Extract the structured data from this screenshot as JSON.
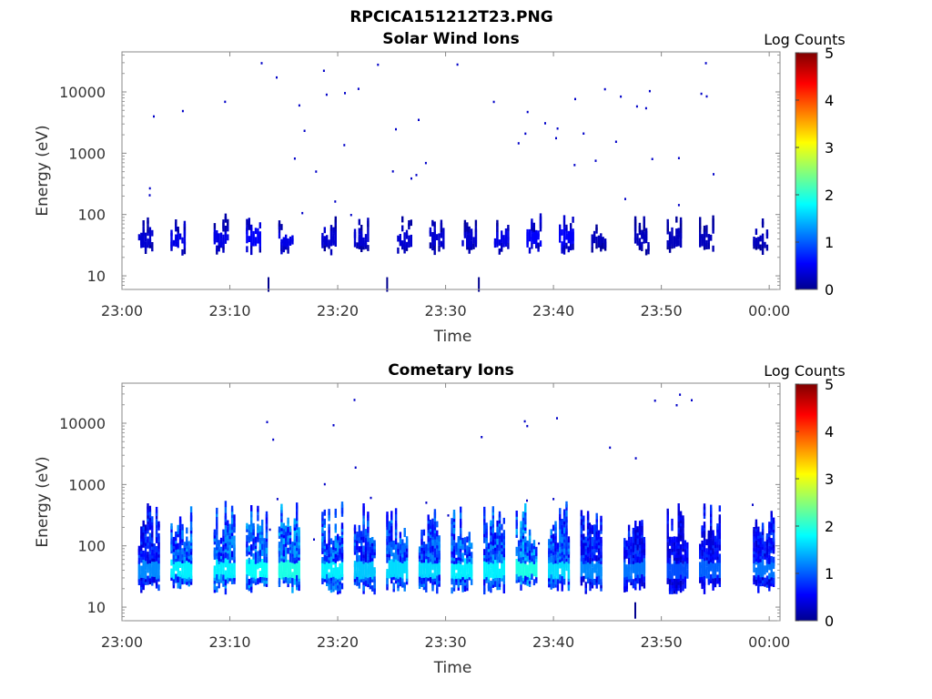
{
  "figure": {
    "title": "RPCICA151212T23.PNG"
  },
  "colorbar": {
    "label": "Log Counts",
    "min": 0,
    "max": 5,
    "ticks": [
      "0",
      "1",
      "2",
      "3",
      "4",
      "5"
    ],
    "colormap": "jet"
  },
  "chart_data": [
    {
      "type": "heatmap",
      "title": "Solar Wind Ions",
      "xlabel": "Time",
      "ylabel": "Energy (eV)",
      "yscale": "log",
      "ylim": [
        6,
        45000
      ],
      "xlim": [
        "23:00",
        "00:01"
      ],
      "xticks": [
        "23:00",
        "23:10",
        "23:20",
        "23:30",
        "23:40",
        "23:50",
        "00:00"
      ],
      "yticks": [
        "10",
        "100",
        "1000",
        "10000"
      ],
      "grid": false,
      "bursts": [
        {
          "t": "23:02",
          "counts": 0.4
        },
        {
          "t": "23:05",
          "counts": 0.5
        },
        {
          "t": "23:09",
          "counts": 0.5
        },
        {
          "t": "23:12",
          "counts": 0.6
        },
        {
          "t": "23:15",
          "counts": 0.5
        },
        {
          "t": "23:19",
          "counts": 0.4
        },
        {
          "t": "23:22",
          "counts": 0.4
        },
        {
          "t": "23:26",
          "counts": 0.4
        },
        {
          "t": "23:29",
          "counts": 0.4
        },
        {
          "t": "23:32",
          "counts": 0.4
        },
        {
          "t": "23:35",
          "counts": 0.5
        },
        {
          "t": "23:38",
          "counts": 0.6
        },
        {
          "t": "23:41",
          "counts": 0.6
        },
        {
          "t": "23:44",
          "counts": 0.3
        },
        {
          "t": "23:48",
          "counts": 0.3
        },
        {
          "t": "23:51",
          "counts": 0.3
        },
        {
          "t": "23:54",
          "counts": 0.3
        },
        {
          "t": "23:59",
          "counts": 0.3
        }
      ]
    },
    {
      "type": "heatmap",
      "title": "Cometary Ions",
      "xlabel": "Time",
      "ylabel": "Energy (eV)",
      "yscale": "log",
      "ylim": [
        6,
        45000
      ],
      "xlim": [
        "23:00",
        "00:01"
      ],
      "xticks": [
        "23:00",
        "23:10",
        "23:20",
        "23:30",
        "23:40",
        "23:50",
        "00:00"
      ],
      "yticks": [
        "10",
        "100",
        "1000",
        "10000"
      ],
      "grid": false,
      "bursts": [
        {
          "t": "23:02",
          "counts": 1.3
        },
        {
          "t": "23:05",
          "counts": 1.8
        },
        {
          "t": "23:09",
          "counts": 1.8
        },
        {
          "t": "23:12",
          "counts": 1.9
        },
        {
          "t": "23:15",
          "counts": 2.0
        },
        {
          "t": "23:19",
          "counts": 1.8
        },
        {
          "t": "23:22",
          "counts": 1.6
        },
        {
          "t": "23:25",
          "counts": 1.7
        },
        {
          "t": "23:28",
          "counts": 1.7
        },
        {
          "t": "23:31",
          "counts": 1.8
        },
        {
          "t": "23:34",
          "counts": 1.8
        },
        {
          "t": "23:37",
          "counts": 2.0
        },
        {
          "t": "23:40",
          "counts": 1.7
        },
        {
          "t": "23:43",
          "counts": 1.3
        },
        {
          "t": "23:47",
          "counts": 1.2
        },
        {
          "t": "23:51",
          "counts": 1.0
        },
        {
          "t": "23:54",
          "counts": 1.1
        },
        {
          "t": "23:59",
          "counts": 1.2
        }
      ]
    }
  ]
}
